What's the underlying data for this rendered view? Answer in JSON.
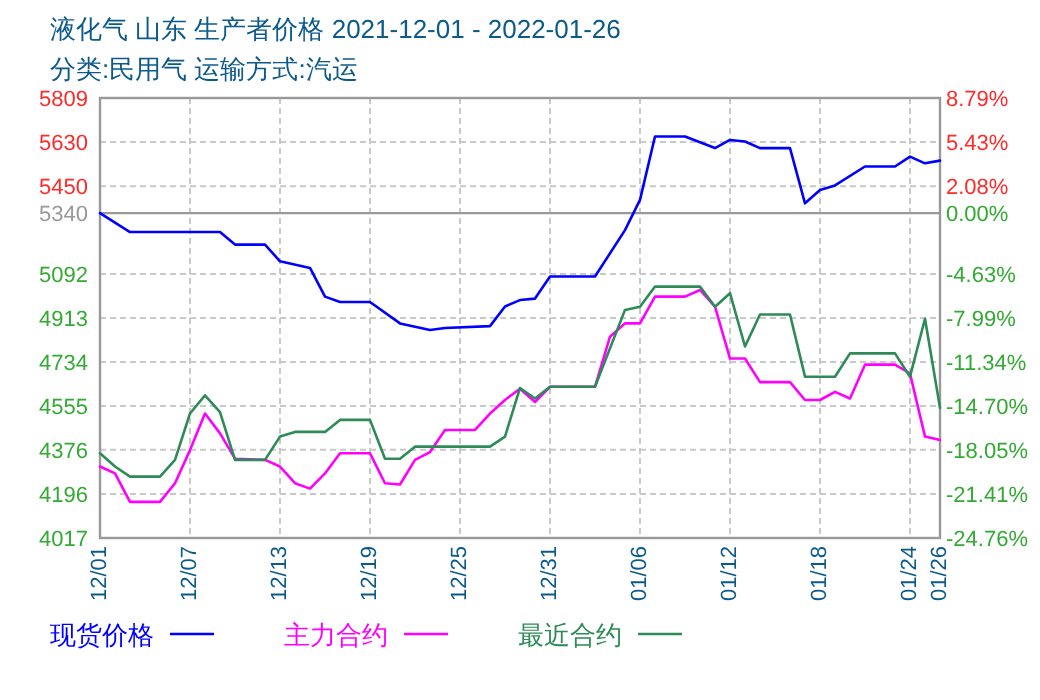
{
  "chart_data": {
    "type": "line",
    "title": "液化气 山东 生产者价格 2021-12-01 - 2022-01-26",
    "subtitle": "分类:民用气 运输方式:汽运",
    "series": [
      {
        "name": "现货价格",
        "color": "#0000ff",
        "x": [
          "2021-12-01",
          "2021-12-03",
          "2021-12-09",
          "2021-12-10",
          "2021-12-12",
          "2021-12-13",
          "2021-12-15",
          "2021-12-16",
          "2021-12-17",
          "2021-12-19",
          "2021-12-21",
          "2021-12-23",
          "2021-12-24",
          "2021-12-27",
          "2021-12-28",
          "2021-12-29",
          "2021-12-30",
          "2021-12-31",
          "2022-01-03",
          "2022-01-05",
          "2022-01-06",
          "2022-01-07",
          "2022-01-09",
          "2022-01-11",
          "2022-01-12",
          "2022-01-13",
          "2022-01-14",
          "2022-01-16",
          "2022-01-17",
          "2022-01-18",
          "2022-01-19",
          "2022-01-21",
          "2022-01-23",
          "2022-01-24",
          "2022-01-25",
          "2022-01-26"
        ],
        "values": [
          5340,
          5263,
          5263,
          5212,
          5212,
          5144,
          5117,
          5000,
          4978,
          4978,
          4891,
          4864,
          4872,
          4880,
          4960,
          4986,
          4992,
          5082,
          5082,
          5271,
          5394,
          5652,
          5652,
          5605,
          5638,
          5632,
          5605,
          5605,
          5380,
          5434,
          5453,
          5530,
          5530,
          5570,
          5543,
          5554
        ]
      },
      {
        "name": "主力合约",
        "color": "#ff00ff",
        "x": [
          "2021-12-01",
          "2021-12-02",
          "2021-12-03",
          "2021-12-05",
          "2021-12-06",
          "2021-12-07",
          "2021-12-08",
          "2021-12-09",
          "2021-12-10",
          "2021-12-12",
          "2021-12-13",
          "2021-12-14",
          "2021-12-15",
          "2021-12-16",
          "2021-12-17",
          "2021-12-19",
          "2021-12-20",
          "2021-12-21",
          "2021-12-22",
          "2021-12-23",
          "2021-12-24",
          "2021-12-26",
          "2021-12-27",
          "2021-12-28",
          "2021-12-29",
          "2021-12-30",
          "2021-12-31",
          "2022-01-03",
          "2022-01-04",
          "2022-01-05",
          "2022-01-06",
          "2022-01-07",
          "2022-01-09",
          "2022-01-10",
          "2022-01-11",
          "2022-01-12",
          "2022-01-13",
          "2022-01-14",
          "2022-01-16",
          "2022-01-17",
          "2022-01-18",
          "2022-01-19",
          "2022-01-20",
          "2022-01-21",
          "2022-01-23",
          "2022-01-24",
          "2022-01-25",
          "2022-01-26"
        ],
        "values": [
          4308,
          4280,
          4164,
          4164,
          4240,
          4375,
          4524,
          4443,
          4340,
          4335,
          4308,
          4240,
          4218,
          4280,
          4362,
          4362,
          4240,
          4235,
          4335,
          4367,
          4457,
          4457,
          4524,
          4579,
          4625,
          4571,
          4633,
          4633,
          4837,
          4891,
          4891,
          5000,
          5000,
          5027,
          4959,
          4748,
          4748,
          4652,
          4652,
          4579,
          4579,
          4612,
          4585,
          4723,
          4723,
          4687,
          4430,
          4416
        ]
      },
      {
        "name": "最近合约",
        "color": "#2e8b57",
        "x": [
          "2021-12-01",
          "2021-12-02",
          "2021-12-03",
          "2021-12-05",
          "2021-12-06",
          "2021-12-07",
          "2021-12-08",
          "2021-12-09",
          "2021-12-10",
          "2021-12-12",
          "2021-12-13",
          "2021-12-14",
          "2021-12-16",
          "2021-12-17",
          "2021-12-19",
          "2021-12-20",
          "2021-12-21",
          "2021-12-22",
          "2021-12-27",
          "2021-12-28",
          "2021-12-29",
          "2021-12-30",
          "2021-12-31",
          "2022-01-03",
          "2022-01-05",
          "2022-01-06",
          "2022-01-07",
          "2022-01-10",
          "2022-01-11",
          "2022-01-12",
          "2022-01-13",
          "2022-01-14",
          "2022-01-16",
          "2022-01-17",
          "2022-01-19",
          "2022-01-20",
          "2022-01-23",
          "2022-01-24",
          "2022-01-25",
          "2022-01-26"
        ],
        "values": [
          4362,
          4308,
          4267,
          4267,
          4335,
          4524,
          4598,
          4530,
          4335,
          4335,
          4430,
          4449,
          4449,
          4498,
          4498,
          4340,
          4340,
          4389,
          4389,
          4430,
          4628,
          4585,
          4633,
          4633,
          4946,
          4959,
          5041,
          5041,
          4959,
          5014,
          4797,
          4927,
          4927,
          4674,
          4674,
          4769,
          4769,
          4674,
          4910,
          4547
        ]
      }
    ],
    "xlim": [
      "2021-12-01",
      "2022-01-26"
    ],
    "xticks": [
      {
        "value": "2021-12-01",
        "label": "12/01"
      },
      {
        "value": "2021-12-07",
        "label": "12/07"
      },
      {
        "value": "2021-12-13",
        "label": "12/13"
      },
      {
        "value": "2021-12-19",
        "label": "12/19"
      },
      {
        "value": "2021-12-25",
        "label": "12/25"
      },
      {
        "value": "2021-12-31",
        "label": "12/31"
      },
      {
        "value": "2022-01-06",
        "label": "01/06"
      },
      {
        "value": "2022-01-12",
        "label": "01/12"
      },
      {
        "value": "2022-01-18",
        "label": "01/18"
      },
      {
        "value": "2022-01-24",
        "label": "01/24"
      },
      {
        "value": "2022-01-26",
        "label": "01/26"
      }
    ],
    "ylim": [
      4017,
      5809
    ],
    "yticks": [
      4017,
      4196,
      4376,
      4555,
      4734,
      4913,
      5092,
      5340,
      5450,
      5630,
      5809
    ],
    "y2lim": [
      -24.76,
      8.79
    ],
    "y2ticks": [
      {
        "value": -24.76,
        "label": "-24.76%"
      },
      {
        "value": -21.41,
        "label": "-21.41%"
      },
      {
        "value": -18.05,
        "label": "-18.05%"
      },
      {
        "value": -14.7,
        "label": "-14.70%"
      },
      {
        "value": -11.34,
        "label": "-11.34%"
      },
      {
        "value": -7.99,
        "label": "-7.99%"
      },
      {
        "value": -4.63,
        "label": "-4.63%"
      },
      {
        "value": 0,
        "label": "0.00%"
      },
      {
        "value": 2.08,
        "label": "2.08%"
      },
      {
        "value": 5.43,
        "label": "5.43%"
      },
      {
        "value": 8.79,
        "label": "8.79%"
      }
    ],
    "ref_lines": [
      {
        "axis": "y",
        "value": 5340,
        "color": "#999999"
      }
    ],
    "grid": true,
    "legend": "bottom"
  }
}
